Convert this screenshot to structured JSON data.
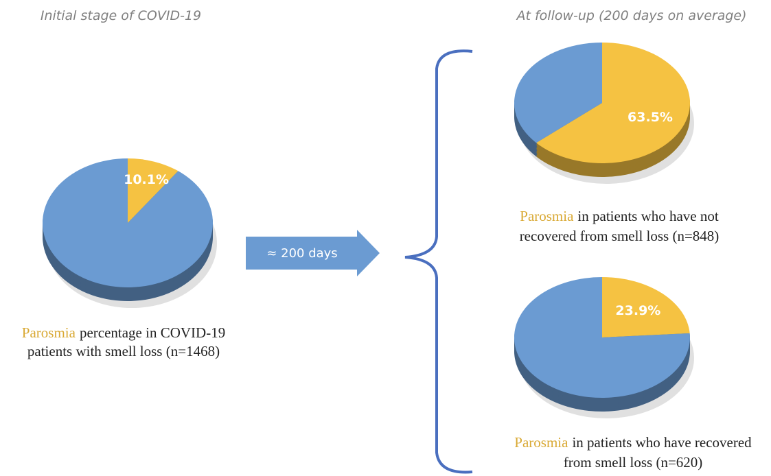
{
  "headers": {
    "left": "Initial stage of COVID-19",
    "right": "At follow-up (200 days on average)"
  },
  "arrow_label": "≈ 200 days",
  "chart_data": [
    {
      "type": "pie",
      "values": [
        10.1,
        89.9
      ],
      "value_labels": [
        "10.1%",
        null
      ],
      "colors": [
        "#f5c242",
        "#6b9bd2"
      ],
      "caption": [
        [
          "Parosmia",
          "percentage in COVID-19"
        ],
        [
          "patients with smell loss (n=1468)"
        ]
      ]
    },
    {
      "type": "pie",
      "values": [
        63.5,
        36.5
      ],
      "value_labels": [
        "63.5%",
        null
      ],
      "colors": [
        "#f5c242",
        "#6b9bd2"
      ],
      "caption": [
        [
          "Parosmia",
          "in patients who have not"
        ],
        [
          "recovered from smell loss (n=848)"
        ]
      ]
    },
    {
      "type": "pie",
      "values": [
        23.9,
        76.1
      ],
      "value_labels": [
        "23.9%",
        null
      ],
      "colors": [
        "#f5c242",
        "#6b9bd2"
      ],
      "caption": [
        [
          "Parosmia",
          "in patients who have recovered"
        ],
        [
          "from smell loss (n=620)"
        ]
      ]
    }
  ]
}
